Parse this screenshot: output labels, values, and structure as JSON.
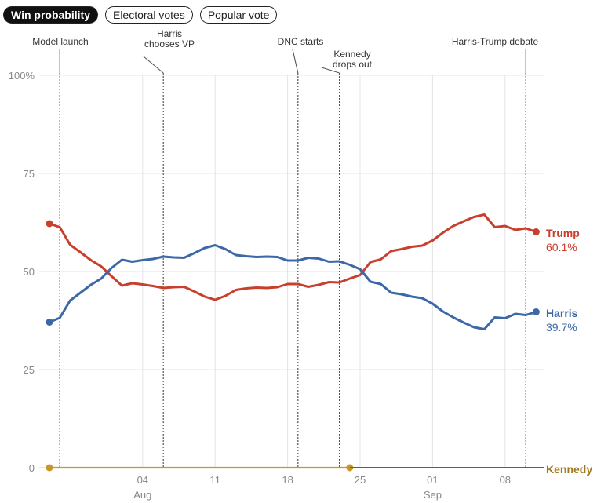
{
  "tabs": [
    {
      "label": "Win probability",
      "active": true
    },
    {
      "label": "Electoral votes",
      "active": false
    },
    {
      "label": "Popular vote",
      "active": false
    }
  ],
  "colors": {
    "trump": "#c8402d",
    "harris": "#3c68a8",
    "kennedy": "#c8962a",
    "grid": "#e4e4e4",
    "axis": "#555555"
  },
  "chart_data": {
    "type": "line",
    "title": "",
    "xlabel": "",
    "ylabel": "",
    "ylim": [
      0,
      100
    ],
    "xlim": [
      "2024-07-26",
      "2024-09-14"
    ],
    "yticks": [
      {
        "value": 0,
        "label": "0"
      },
      {
        "value": 25,
        "label": "25"
      },
      {
        "value": 50,
        "label": "50"
      },
      {
        "value": 75,
        "label": "75"
      },
      {
        "value": 100,
        "label": "100%"
      }
    ],
    "xticks": [
      {
        "date": "2024-08-04",
        "label": "04",
        "sublabel": "Aug"
      },
      {
        "date": "2024-08-11",
        "label": "11",
        "sublabel": ""
      },
      {
        "date": "2024-08-18",
        "label": "18",
        "sublabel": ""
      },
      {
        "date": "2024-08-25",
        "label": "25",
        "sublabel": ""
      },
      {
        "date": "2024-09-01",
        "label": "01",
        "sublabel": "Sep"
      },
      {
        "date": "2024-09-08",
        "label": "08",
        "sublabel": ""
      }
    ],
    "x": [
      "2024-07-26",
      "2024-07-27",
      "2024-07-28",
      "2024-07-29",
      "2024-07-30",
      "2024-07-31",
      "2024-08-01",
      "2024-08-02",
      "2024-08-03",
      "2024-08-04",
      "2024-08-05",
      "2024-08-06",
      "2024-08-07",
      "2024-08-08",
      "2024-08-09",
      "2024-08-10",
      "2024-08-11",
      "2024-08-12",
      "2024-08-13",
      "2024-08-14",
      "2024-08-15",
      "2024-08-16",
      "2024-08-17",
      "2024-08-18",
      "2024-08-19",
      "2024-08-20",
      "2024-08-21",
      "2024-08-22",
      "2024-08-23",
      "2024-08-24",
      "2024-08-25",
      "2024-08-26",
      "2024-08-27",
      "2024-08-28",
      "2024-08-29",
      "2024-08-30",
      "2024-08-31",
      "2024-09-01",
      "2024-09-02",
      "2024-09-03",
      "2024-09-04",
      "2024-09-05",
      "2024-09-06",
      "2024-09-07",
      "2024-09-08",
      "2024-09-09",
      "2024-09-10",
      "2024-09-11",
      "2024-09-12",
      "2024-09-13",
      "2024-09-14"
    ],
    "series": [
      {
        "name": "Trump",
        "color_key": "trump",
        "end_label": "60.1%",
        "values": [
          62.2,
          61.3,
          56.8,
          54.9,
          52.9,
          51.3,
          48.8,
          46.4,
          47.0,
          46.7,
          46.3,
          45.8,
          46.0,
          46.1,
          44.9,
          43.6,
          42.8,
          43.8,
          45.3,
          45.7,
          45.9,
          45.8,
          46.0,
          46.8,
          46.8,
          46.1,
          46.6,
          47.3,
          47.2,
          48.2,
          49.1,
          52.4,
          53.1,
          55.2,
          55.7,
          56.3,
          56.6,
          57.9,
          59.9,
          61.6,
          62.8,
          63.9,
          64.5,
          61.3,
          61.6,
          60.6,
          61.0,
          60.1,
          null,
          null,
          null
        ]
      },
      {
        "name": "Harris",
        "color_key": "harris",
        "end_label": "39.7%",
        "values": [
          37.1,
          38.2,
          42.6,
          44.6,
          46.6,
          48.2,
          50.9,
          53.0,
          52.5,
          52.9,
          53.2,
          53.8,
          53.6,
          53.5,
          54.7,
          56.0,
          56.7,
          55.7,
          54.2,
          53.9,
          53.7,
          53.8,
          53.7,
          52.8,
          52.8,
          53.5,
          53.3,
          52.5,
          52.6,
          51.7,
          50.6,
          47.4,
          46.8,
          44.6,
          44.2,
          43.6,
          43.2,
          41.8,
          39.8,
          38.3,
          37.0,
          35.8,
          35.3,
          38.3,
          38.1,
          39.2,
          38.9,
          39.7,
          null,
          null,
          null
        ]
      },
      {
        "name": "Kennedy",
        "color_key": "kennedy",
        "end_label": "",
        "values": [
          0,
          0,
          0,
          0,
          0,
          0,
          0,
          0,
          0,
          0,
          0,
          0,
          0,
          0,
          0,
          0,
          0,
          0,
          0,
          0,
          0,
          0,
          0,
          0,
          0,
          0,
          0,
          0,
          0,
          0,
          null,
          null,
          null,
          null,
          null,
          null,
          null,
          null,
          null,
          null,
          null,
          null,
          null,
          null,
          null,
          null,
          null,
          null,
          null,
          null,
          null
        ]
      }
    ],
    "annotations": [
      {
        "date": "2024-07-27",
        "lines": [
          "Model launch"
        ]
      },
      {
        "date": "2024-08-06",
        "lines": [
          "Harris",
          "chooses VP"
        ]
      },
      {
        "date": "2024-08-19",
        "lines": [
          "DNC starts"
        ]
      },
      {
        "date": "2024-08-23",
        "lines": [
          "Kennedy",
          "drops out"
        ]
      },
      {
        "date": "2024-09-10",
        "lines": [
          "Harris-Trump debate"
        ]
      }
    ],
    "grid": true,
    "legend": "end-of-line labels"
  }
}
